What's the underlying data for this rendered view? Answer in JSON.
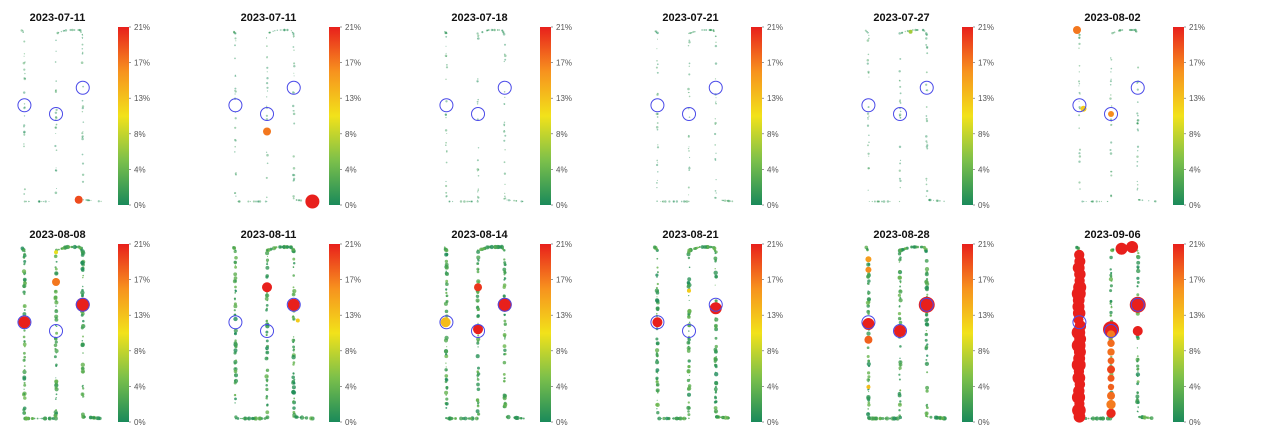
{
  "chart_data": {
    "type": "scatter",
    "description_type": "small-multiples spatial scatter on a U-shaped path layout with a color scale",
    "colorbar": {
      "min": 0,
      "max": 21,
      "tick_labels": [
        "21%",
        "17%",
        "13%",
        "8%",
        "4%",
        "0%"
      ],
      "colors": [
        "#1a8a5a",
        "#7cc04a",
        "#f2e21a",
        "#f7921e",
        "#e8201c"
      ]
    },
    "panels": [
      {
        "date": "2023-07-11",
        "highlights": [
          {
            "x": 0.7,
            "y": 0.03,
            "v": 19,
            "r": 4
          }
        ]
      },
      {
        "date": "2023-07-11",
        "highlights": [
          {
            "x": 0.42,
            "y": 0.42,
            "v": 17,
            "r": 4
          },
          {
            "x": 0.98,
            "y": 0.02,
            "v": 21,
            "r": 7
          }
        ]
      },
      {
        "date": "2023-07-18",
        "highlights": []
      },
      {
        "date": "2023-07-21",
        "highlights": []
      },
      {
        "date": "2023-07-27",
        "highlights": [
          {
            "x": 0.55,
            "y": 0.99,
            "v": 7,
            "r": 2
          }
        ]
      },
      {
        "date": "2023-08-02",
        "highlights": [
          {
            "x": 0.0,
            "y": 1.0,
            "v": 17,
            "r": 4
          },
          {
            "x": 0.08,
            "y": 0.55,
            "v": 12,
            "r": 3
          },
          {
            "x": 0.42,
            "y": 0.52,
            "v": 16,
            "r": 3
          }
        ]
      },
      {
        "date": "2023-08-08",
        "highlights": [
          {
            "x": 0.03,
            "y": 0.57,
            "v": 21,
            "r": 6
          },
          {
            "x": 0.42,
            "y": 0.8,
            "v": 17,
            "r": 4
          },
          {
            "x": 0.42,
            "y": 0.97,
            "v": 10,
            "r": 2
          },
          {
            "x": 0.75,
            "y": 0.67,
            "v": 21,
            "r": 7
          }
        ]
      },
      {
        "date": "2023-08-11",
        "highlights": [
          {
            "x": 0.42,
            "y": 0.77,
            "v": 21,
            "r": 5
          },
          {
            "x": 0.75,
            "y": 0.67,
            "v": 21,
            "r": 6
          },
          {
            "x": 0.8,
            "y": 0.58,
            "v": 12,
            "r": 2
          }
        ]
      },
      {
        "date": "2023-08-14",
        "highlights": [
          {
            "x": 0.02,
            "y": 0.57,
            "v": 13,
            "r": 5
          },
          {
            "x": 0.42,
            "y": 0.77,
            "v": 20,
            "r": 4
          },
          {
            "x": 0.42,
            "y": 0.53,
            "v": 21,
            "r": 5
          },
          {
            "x": 0.75,
            "y": 0.67,
            "v": 21,
            "r": 7
          }
        ]
      },
      {
        "date": "2023-08-21",
        "highlights": [
          {
            "x": 0.03,
            "y": 0.57,
            "v": 21,
            "r": 5
          },
          {
            "x": 0.42,
            "y": 0.75,
            "v": 12,
            "r": 2
          },
          {
            "x": 0.75,
            "y": 0.65,
            "v": 21,
            "r": 6
          }
        ]
      },
      {
        "date": "2023-08-28",
        "highlights": [
          {
            "x": 0.03,
            "y": 0.93,
            "v": 15,
            "r": 3
          },
          {
            "x": 0.03,
            "y": 0.87,
            "v": 16,
            "r": 3
          },
          {
            "x": 0.03,
            "y": 0.56,
            "v": 21,
            "r": 6
          },
          {
            "x": 0.03,
            "y": 0.47,
            "v": 18,
            "r": 4
          },
          {
            "x": 0.42,
            "y": 0.52,
            "v": 21,
            "r": 6
          },
          {
            "x": 0.75,
            "y": 0.67,
            "v": 21,
            "r": 8
          },
          {
            "x": 0.03,
            "y": 0.2,
            "v": 13,
            "r": 2
          }
        ]
      },
      {
        "date": "2023-09-06",
        "highlights": [
          {
            "x": 0.42,
            "y": 0.53,
            "v": 21,
            "r": 8
          },
          {
            "x": 0.75,
            "y": 0.67,
            "v": 21,
            "r": 8
          },
          {
            "x": 0.55,
            "y": 0.99,
            "v": 21,
            "r": 6
          },
          {
            "x": 0.68,
            "y": 1.0,
            "v": 21,
            "r": 6
          },
          {
            "x": 0.75,
            "y": 0.52,
            "v": 21,
            "r": 5
          },
          {
            "x": 0.42,
            "y": 0.3,
            "v": 18,
            "r": 4
          },
          {
            "x": 0.42,
            "y": 0.2,
            "v": 15,
            "r": 3
          },
          {
            "x": 0.42,
            "y": 0.1,
            "v": 21,
            "r": 4
          }
        ]
      }
    ],
    "reference_circles": [
      {
        "x": 0.03,
        "y": 0.57
      },
      {
        "x": 0.42,
        "y": 0.52
      },
      {
        "x": 0.75,
        "y": 0.67
      }
    ],
    "xlabel": "",
    "ylabel": "",
    "grid": false
  }
}
